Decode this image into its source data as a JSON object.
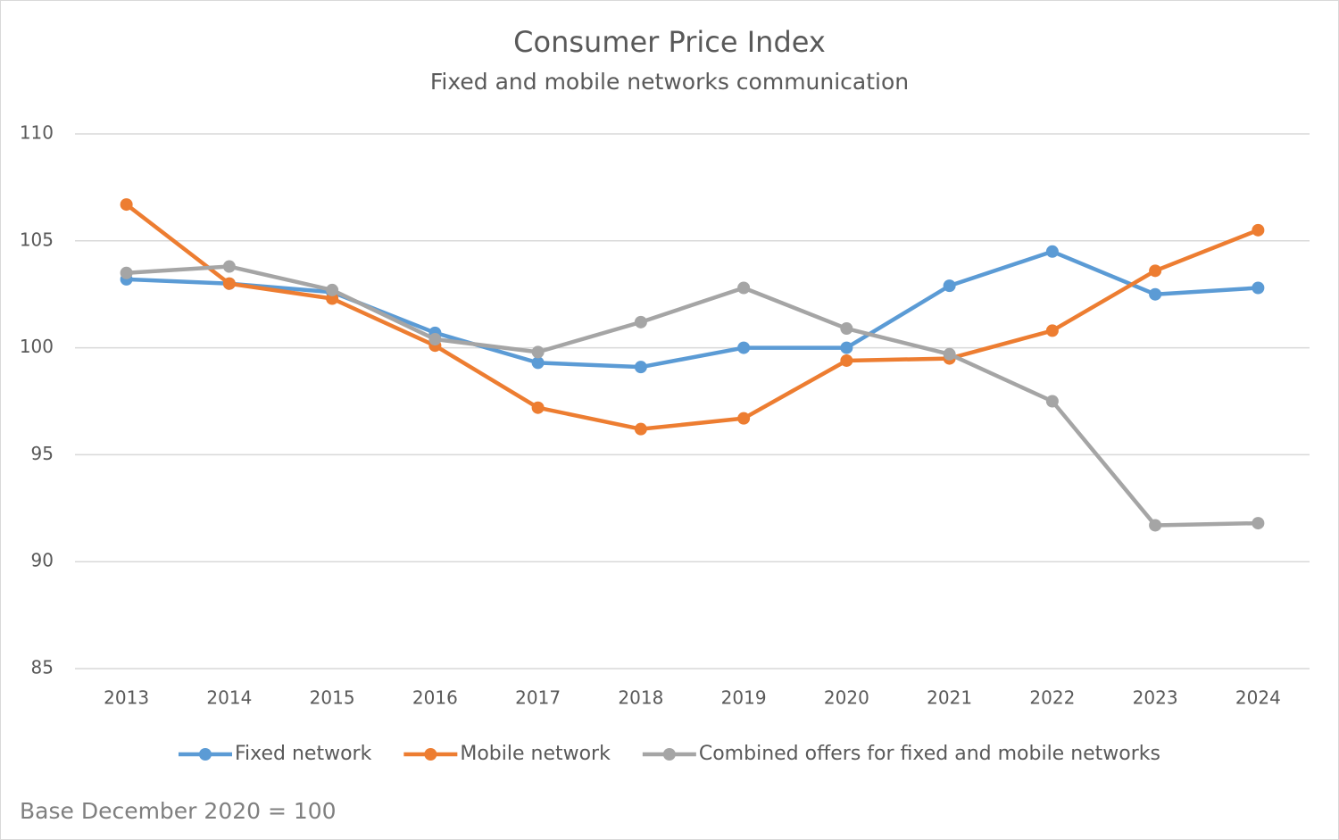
{
  "chart_data": {
    "type": "line",
    "title": "Consumer Price Index",
    "subtitle": "Fixed and mobile networks communication",
    "note": "Base December 2020 = 100",
    "categories": [
      "2013",
      "2014",
      "2015",
      "2016",
      "2017",
      "2018",
      "2019",
      "2020",
      "2021",
      "2022",
      "2023",
      "2024"
    ],
    "series": [
      {
        "name": "Fixed network",
        "color": "#5b9bd5",
        "values": [
          103.2,
          103.0,
          102.6,
          100.7,
          99.3,
          99.1,
          100.0,
          100.0,
          102.9,
          104.5,
          102.5,
          102.8
        ]
      },
      {
        "name": "Mobile network",
        "color": "#ed7d31",
        "values": [
          106.7,
          103.0,
          102.3,
          100.1,
          97.2,
          96.2,
          96.7,
          99.4,
          99.5,
          100.8,
          103.6,
          105.5
        ]
      },
      {
        "name": "Combined offers for fixed and mobile networks",
        "color": "#a5a5a5",
        "values": [
          103.5,
          103.8,
          102.7,
          100.4,
          99.8,
          101.2,
          102.8,
          100.9,
          99.7,
          97.5,
          91.7,
          91.8
        ]
      }
    ],
    "ylim": [
      85,
      110
    ],
    "yticks": [
      85,
      90,
      95,
      100,
      105,
      110
    ],
    "grid": true,
    "legend": "bottom"
  }
}
